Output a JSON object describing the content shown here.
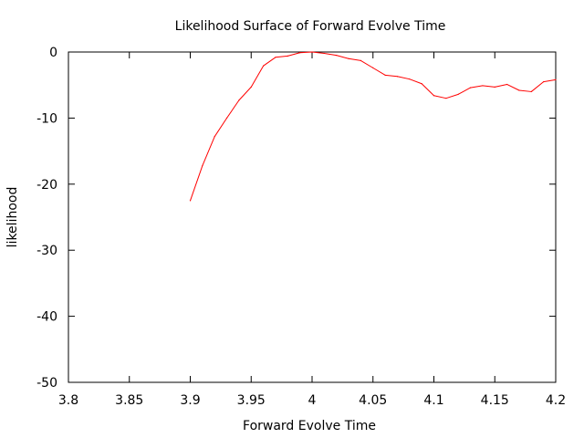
{
  "chart_data": {
    "type": "line",
    "title": "Likelihood Surface of Forward Evolve Time",
    "xlabel": "Forward Evolve Time",
    "ylabel": "likelihood",
    "xlim": [
      3.8,
      4.2
    ],
    "ylim": [
      -50,
      0
    ],
    "xticks": [
      3.8,
      3.85,
      3.9,
      3.95,
      4.0,
      4.05,
      4.1,
      4.15,
      4.2
    ],
    "xtick_labels": [
      "3.8",
      "3.85",
      "3.9",
      "3.95",
      "4",
      "4.05",
      "4.1",
      "4.15",
      "4.2"
    ],
    "yticks": [
      0,
      -10,
      -20,
      -30,
      -40,
      -50
    ],
    "ytick_labels": [
      "0",
      "-10",
      "-20",
      "-30",
      "-40",
      "-50"
    ],
    "grid": false,
    "line_color": "#ff0000",
    "series": [
      {
        "x": [
          3.9,
          3.91,
          3.92,
          3.93,
          3.94,
          3.95,
          3.96,
          3.97,
          3.98,
          3.99,
          4.0,
          4.01,
          4.02,
          4.03,
          4.04,
          4.05,
          4.06,
          4.07,
          4.08,
          4.09,
          4.1,
          4.11,
          4.12,
          4.13,
          4.14,
          4.15,
          4.16,
          4.17,
          4.18,
          4.19,
          4.2
        ],
        "y": [
          -22.5,
          -17.2,
          -12.8,
          -10.0,
          -7.3,
          -5.3,
          -2.1,
          -0.8,
          -0.6,
          -0.1,
          0.0,
          -0.2,
          -0.5,
          -1.0,
          -1.3,
          -2.4,
          -3.5,
          -3.7,
          -4.1,
          -4.8,
          -6.6,
          -7.0,
          -6.4,
          -5.4,
          -5.1,
          -5.3,
          -4.9,
          -5.8,
          -6.0,
          -4.5,
          -4.2
        ]
      }
    ]
  }
}
